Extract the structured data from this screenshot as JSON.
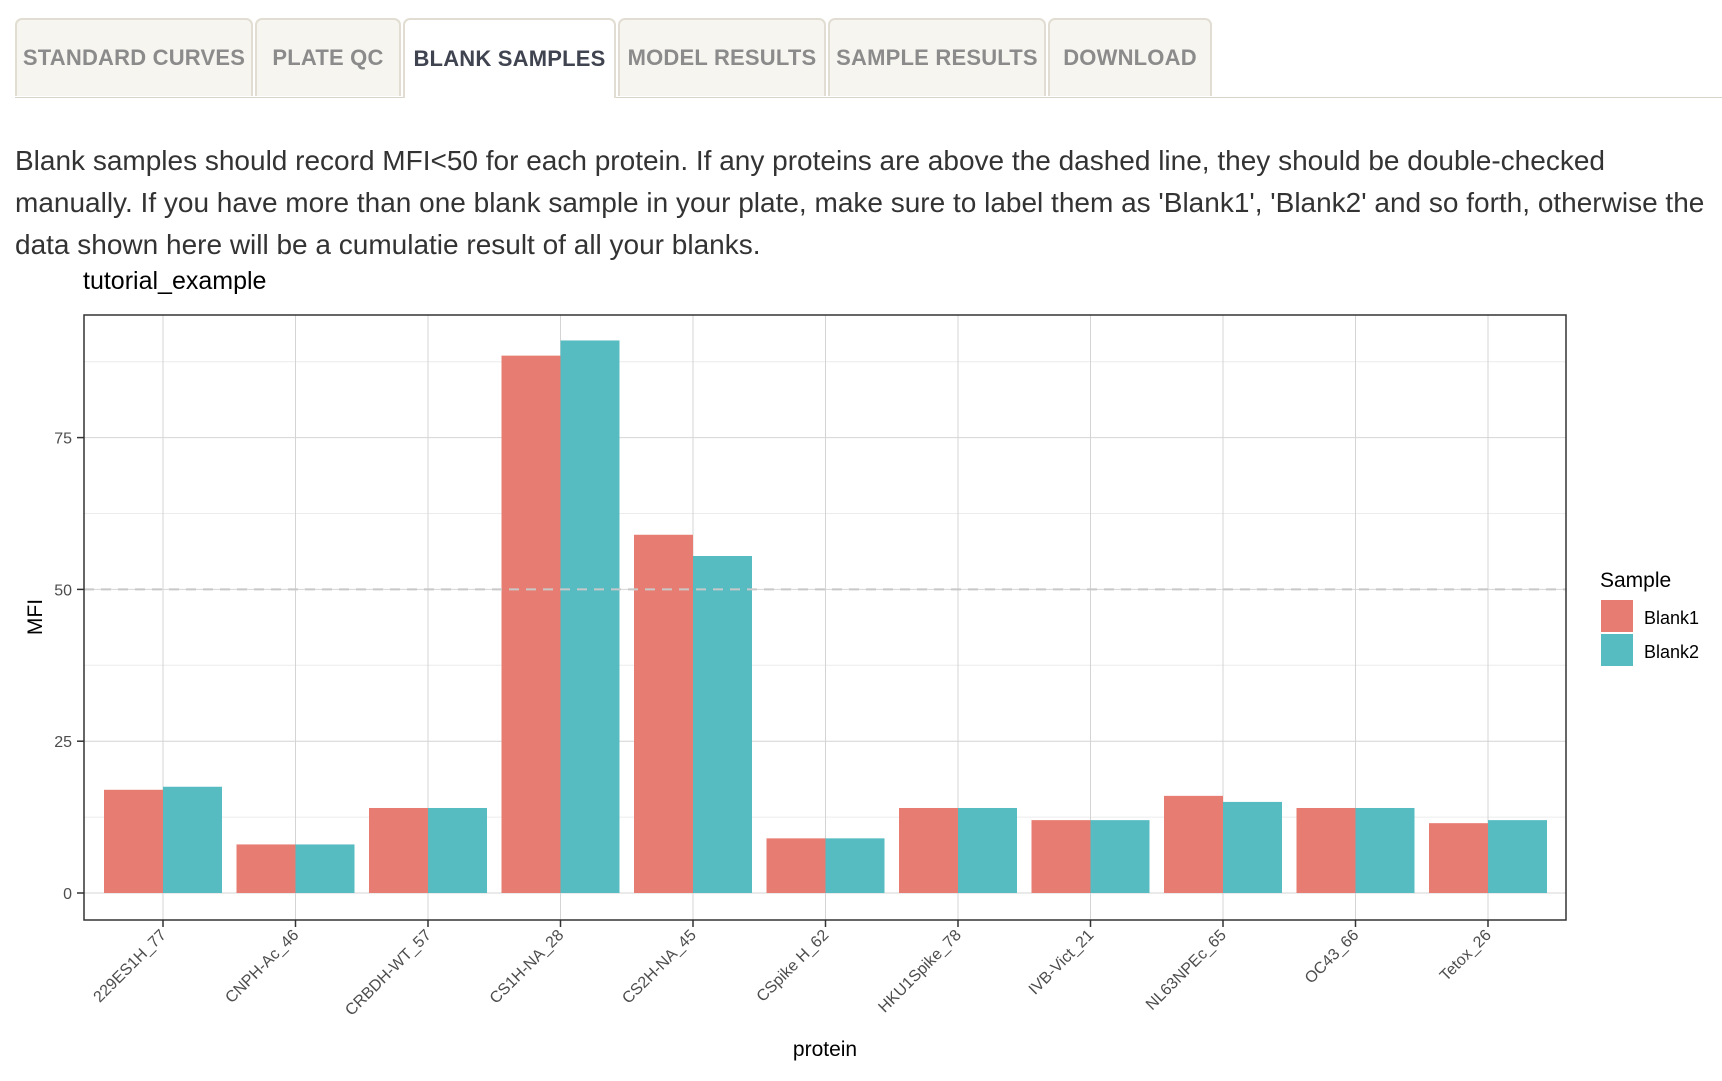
{
  "tabs": [
    {
      "label": "STANDARD CURVES",
      "active": false
    },
    {
      "label": "PLATE QC",
      "active": false
    },
    {
      "label": "BLANK SAMPLES",
      "active": true
    },
    {
      "label": "MODEL RESULTS",
      "active": false
    },
    {
      "label": "SAMPLE RESULTS",
      "active": false
    },
    {
      "label": "DOWNLOAD",
      "active": false
    }
  ],
  "description": "Blank samples should record MFI<50 for each protein. If any proteins are above the dashed line, they should be double-checked manually. If you have more than one blank sample in your plate, make sure to label them as 'Blank1', 'Blank2' and so forth, otherwise the data shown here will be a cumulatie result of all your blanks.",
  "colors": {
    "blank1": "#E77D72",
    "blank2": "#56BCC2",
    "tab_active_text": "#3f4450",
    "tab_inactive_text": "#8b8b8b"
  },
  "chart_data": {
    "type": "bar",
    "title": "tutorial_example",
    "xlabel": "protein",
    "ylabel": "MFI",
    "ylim": [
      0,
      95
    ],
    "yticks": [
      0,
      25,
      50,
      75
    ],
    "threshold": {
      "value": 50,
      "style": "dashed"
    },
    "grid": true,
    "legend": {
      "title": "Sample",
      "position": "right"
    },
    "categories": [
      "229ES1H_77",
      "CNPH-Ac_46",
      "CRBDH-WT_57",
      "CS1H-NA_28",
      "CS2H-NA_45",
      "CSpike H_62",
      "HKU1Spike_78",
      "IVB-Vict_21",
      "NL63NPEc_65",
      "OC43_66",
      "Tetox_26"
    ],
    "series": [
      {
        "name": "Blank1",
        "color": "#E77D72",
        "values": [
          17,
          8,
          14,
          88.5,
          59,
          9,
          14,
          12,
          16,
          14,
          11.5
        ]
      },
      {
        "name": "Blank2",
        "color": "#56BCC2",
        "values": [
          17.5,
          8,
          14,
          91,
          55.5,
          9,
          14,
          12,
          15,
          14,
          12
        ]
      }
    ]
  }
}
